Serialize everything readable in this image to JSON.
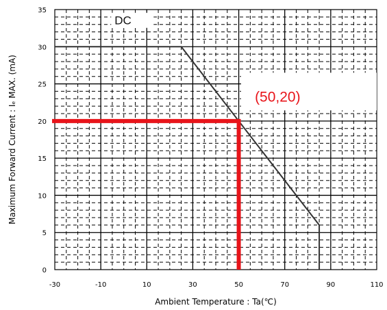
{
  "chart_data": {
    "type": "line",
    "title": "",
    "xlabel": "Ambient Temperature : Ta(℃)",
    "ylabel": "Maximum Forward Current : Iₑ MAX. (mA)",
    "xlim": [
      -30,
      110
    ],
    "ylim": [
      0,
      35
    ],
    "x_ticks": [
      "-30",
      "-10",
      "10",
      "30",
      "50",
      "70",
      "90",
      "110"
    ],
    "y_ticks": [
      "0",
      "5",
      "10",
      "15",
      "20",
      "25",
      "30",
      "35"
    ],
    "grid": true,
    "series": [
      {
        "name": "DC",
        "x": [
          -30,
          25,
          85,
          85
        ],
        "y": [
          30,
          30,
          6,
          0
        ],
        "color": "#333333"
      }
    ],
    "annotations": [
      {
        "text": "(50,20)",
        "x": 50,
        "y": 20,
        "color": "#e8141a"
      }
    ],
    "curve_label": "DC"
  }
}
